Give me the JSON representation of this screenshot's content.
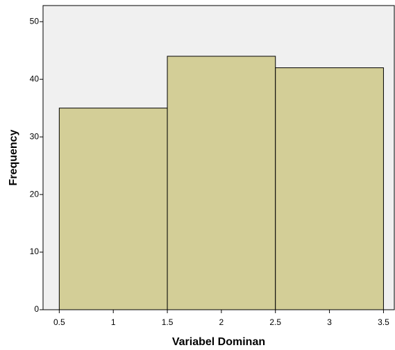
{
  "chart_data": {
    "type": "histogram",
    "x_label": "Variabel Dominan",
    "y_label": "Frequency",
    "bins": [
      0.5,
      1.5,
      2.5,
      3.5
    ],
    "values": [
      35,
      44,
      42
    ],
    "color": "#d3ce97",
    "xlim": [
      0.35,
      3.6
    ],
    "xticks": [
      0.5,
      1,
      1.5,
      2,
      2.5,
      3,
      3.5
    ],
    "ylim": [
      0,
      52.8
    ],
    "yticks": [
      0,
      10,
      20,
      30,
      40,
      50
    ]
  }
}
